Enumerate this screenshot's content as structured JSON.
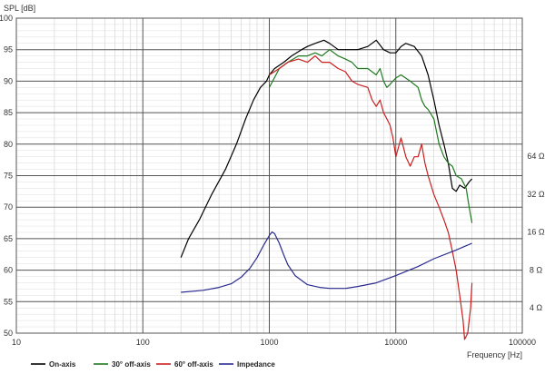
{
  "chart_data": {
    "type": "line",
    "ylabel": "SPL [dB]",
    "xlabel": "Frequency [Hz]",
    "x_scale": "log",
    "xlim": [
      10,
      100000
    ],
    "ylim": [
      50,
      100
    ],
    "x_ticks": [
      {
        "value": 10,
        "label": "10"
      },
      {
        "value": 100,
        "label": "100"
      },
      {
        "value": 1000,
        "label": "1000"
      },
      {
        "value": 10000,
        "label": "10000"
      },
      {
        "value": 100000,
        "label": "100000"
      }
    ],
    "y_ticks": [
      50,
      55,
      60,
      65,
      70,
      75,
      80,
      85,
      90,
      95,
      100
    ],
    "impedance_axis": {
      "unit": "Ω",
      "ticks": [
        {
          "value": 4,
          "label": "4 Ω"
        },
        {
          "value": 8,
          "label": "8 Ω"
        },
        {
          "value": 16,
          "label": "16 Ω"
        },
        {
          "value": 32,
          "label": "32 Ω"
        },
        {
          "value": 64,
          "label": "64 Ω"
        }
      ]
    },
    "grid": true,
    "legend_position": "bottom",
    "series": [
      {
        "name": "On-axis",
        "color": "#000000",
        "points": [
          [
            200,
            62
          ],
          [
            230,
            65
          ],
          [
            280,
            68
          ],
          [
            350,
            72
          ],
          [
            450,
            76
          ],
          [
            550,
            80
          ],
          [
            650,
            84
          ],
          [
            750,
            87
          ],
          [
            850,
            89
          ],
          [
            950,
            90
          ],
          [
            1000,
            91
          ],
          [
            1100,
            92
          ],
          [
            1300,
            93
          ],
          [
            1500,
            94
          ],
          [
            1800,
            95
          ],
          [
            2000,
            95.5
          ],
          [
            2300,
            96
          ],
          [
            2700,
            96.5
          ],
          [
            3000,
            96
          ],
          [
            3500,
            95
          ],
          [
            4000,
            95
          ],
          [
            5000,
            95
          ],
          [
            6000,
            95.5
          ],
          [
            7000,
            96.5
          ],
          [
            8000,
            95
          ],
          [
            9000,
            94.5
          ],
          [
            10000,
            94.5
          ],
          [
            11000,
            95.5
          ],
          [
            12000,
            96
          ],
          [
            14000,
            95.5
          ],
          [
            16000,
            94
          ],
          [
            18000,
            91
          ],
          [
            20000,
            87
          ],
          [
            22000,
            83
          ],
          [
            24000,
            80
          ],
          [
            26000,
            77
          ],
          [
            28000,
            73
          ],
          [
            30000,
            72.5
          ],
          [
            32000,
            73.5
          ],
          [
            35000,
            73
          ],
          [
            38000,
            74
          ],
          [
            40000,
            74.5
          ]
        ]
      },
      {
        "name": "30° off-axis",
        "color": "#1f7a1f",
        "points": [
          [
            1000,
            89
          ],
          [
            1200,
            92
          ],
          [
            1400,
            93
          ],
          [
            1700,
            94
          ],
          [
            2000,
            94
          ],
          [
            2300,
            94.5
          ],
          [
            2600,
            94
          ],
          [
            3000,
            95
          ],
          [
            3500,
            94
          ],
          [
            4000,
            93.5
          ],
          [
            4500,
            93
          ],
          [
            5000,
            92
          ],
          [
            6000,
            92
          ],
          [
            7000,
            91
          ],
          [
            7500,
            92
          ],
          [
            8000,
            90
          ],
          [
            8500,
            89
          ],
          [
            9000,
            89.5
          ],
          [
            10000,
            90.5
          ],
          [
            11000,
            91
          ],
          [
            13000,
            90
          ],
          [
            15000,
            89
          ],
          [
            16000,
            87
          ],
          [
            17000,
            86
          ],
          [
            18000,
            85.5
          ],
          [
            20000,
            84
          ],
          [
            22000,
            80
          ],
          [
            24000,
            78
          ],
          [
            26000,
            77
          ],
          [
            28000,
            76.5
          ],
          [
            30000,
            75
          ],
          [
            33000,
            74.5
          ],
          [
            36000,
            73
          ],
          [
            38000,
            70
          ],
          [
            40000,
            67.5
          ]
        ]
      },
      {
        "name": "60° off-axis",
        "color": "#cc1f1f",
        "points": [
          [
            1000,
            91
          ],
          [
            1200,
            92
          ],
          [
            1400,
            93
          ],
          [
            1700,
            93.5
          ],
          [
            2000,
            93
          ],
          [
            2300,
            94
          ],
          [
            2600,
            93
          ],
          [
            3000,
            93
          ],
          [
            3500,
            92
          ],
          [
            4000,
            91.5
          ],
          [
            4500,
            90
          ],
          [
            5000,
            89.5
          ],
          [
            6000,
            89
          ],
          [
            6500,
            87
          ],
          [
            7000,
            86
          ],
          [
            7500,
            87
          ],
          [
            8000,
            85
          ],
          [
            8500,
            84
          ],
          [
            9000,
            83
          ],
          [
            9500,
            81
          ],
          [
            10000,
            78
          ],
          [
            11000,
            81
          ],
          [
            12000,
            78
          ],
          [
            13000,
            76.5
          ],
          [
            14000,
            78
          ],
          [
            15000,
            78
          ],
          [
            16000,
            80
          ],
          [
            17000,
            77
          ],
          [
            18000,
            75
          ],
          [
            20000,
            72
          ],
          [
            22000,
            70
          ],
          [
            24000,
            68
          ],
          [
            26000,
            66
          ],
          [
            28000,
            63
          ],
          [
            30000,
            60
          ],
          [
            32000,
            56
          ],
          [
            34000,
            52
          ],
          [
            35000,
            49
          ],
          [
            37000,
            50
          ],
          [
            39000,
            54
          ],
          [
            40000,
            58
          ]
        ]
      },
      {
        "name": "Impedance",
        "color": "#2b2b8f",
        "axis": "right",
        "points": [
          [
            200,
            5.3
          ],
          [
            300,
            5.5
          ],
          [
            400,
            5.8
          ],
          [
            500,
            6.2
          ],
          [
            600,
            7.0
          ],
          [
            700,
            8.2
          ],
          [
            800,
            10
          ],
          [
            900,
            12.5
          ],
          [
            1000,
            15
          ],
          [
            1050,
            16
          ],
          [
            1100,
            15.5
          ],
          [
            1200,
            13
          ],
          [
            1300,
            10.5
          ],
          [
            1400,
            8.8
          ],
          [
            1600,
            7.2
          ],
          [
            2000,
            6.1
          ],
          [
            2500,
            5.8
          ],
          [
            3000,
            5.7
          ],
          [
            4000,
            5.7
          ],
          [
            5000,
            5.9
          ],
          [
            7000,
            6.3
          ],
          [
            10000,
            7.2
          ],
          [
            15000,
            8.5
          ],
          [
            20000,
            9.8
          ],
          [
            30000,
            11.5
          ],
          [
            40000,
            13
          ]
        ]
      }
    ]
  }
}
